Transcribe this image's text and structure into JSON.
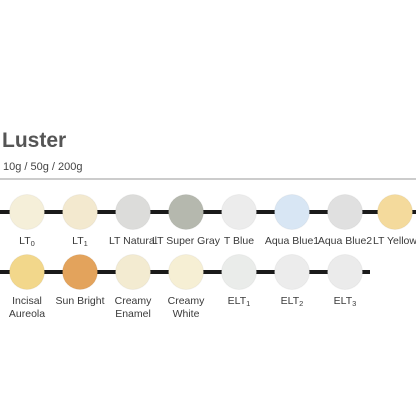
{
  "header": {
    "title": "Luster",
    "subtitle": "10g / 50g / 200g"
  },
  "rows": [
    {
      "swatches": [
        {
          "color": "#f5efd9",
          "lines": [
            {
              "text": "LT",
              "sub": "0"
            }
          ]
        },
        {
          "color": "#f3e9cf",
          "lines": [
            {
              "text": "LT",
              "sub": "1"
            }
          ]
        },
        {
          "color": "#dcdcda",
          "lines": [
            {
              "text": "LT Natural"
            }
          ]
        },
        {
          "color": "#b5b8ae",
          "lines": [
            {
              "text": "LT Super Gray"
            }
          ]
        },
        {
          "color": "#ececec",
          "lines": [
            {
              "text": "T Blue"
            }
          ]
        },
        {
          "color": "#d8e6f4",
          "lines": [
            {
              "text": "Aqua Blue1"
            }
          ]
        },
        {
          "color": "#e0e0e0",
          "lines": [
            {
              "text": "Aqua Blue2"
            }
          ]
        },
        {
          "color": "#f4da9c",
          "lines": [
            {
              "text": "LT Yellow"
            }
          ]
        }
      ]
    },
    {
      "swatches": [
        {
          "color": "#f2d78b",
          "lines": [
            {
              "text": "Incisal"
            },
            {
              "text": "Aureola"
            }
          ]
        },
        {
          "color": "#e3a35c",
          "lines": [
            {
              "text": "Sun Bright"
            }
          ]
        },
        {
          "color": "#f3ebd1",
          "lines": [
            {
              "text": "Creamy"
            },
            {
              "text": "Enamel"
            }
          ]
        },
        {
          "color": "#f6efd4",
          "lines": [
            {
              "text": "Creamy"
            },
            {
              "text": "White"
            }
          ]
        },
        {
          "color": "#eaecea",
          "lines": [
            {
              "text": "ELT",
              "sub": "1"
            }
          ]
        },
        {
          "color": "#ececec",
          "lines": [
            {
              "text": "ELT",
              "sub": "2"
            }
          ]
        },
        {
          "color": "#ebebeb",
          "lines": [
            {
              "text": "ELT",
              "sub": "3"
            }
          ]
        }
      ]
    }
  ]
}
